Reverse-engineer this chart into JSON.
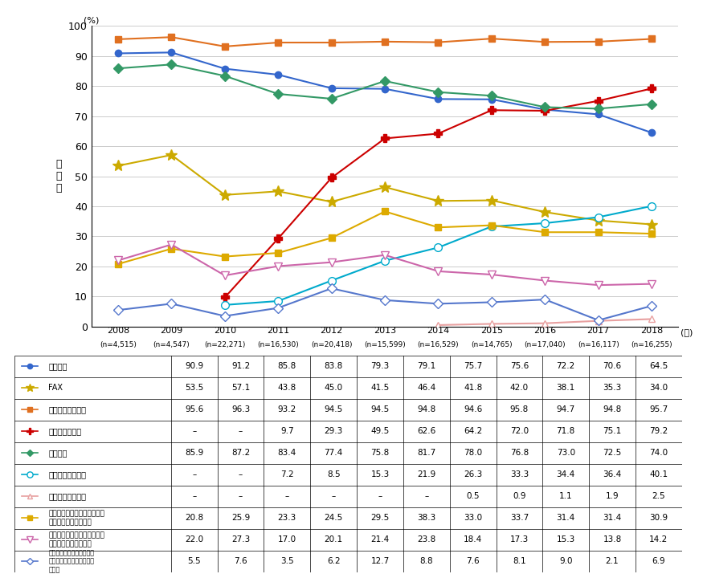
{
  "ylabel": "保\n有\n率",
  "xlabel_years": [
    2008,
    2009,
    2010,
    2011,
    2012,
    2013,
    2014,
    2015,
    2016,
    2017,
    2018
  ],
  "xlabel_n": [
    "(n=4,515)",
    "(n=4,547)",
    "(n=22,271)",
    "(n=16,530)",
    "(n=20,418)",
    "(n=15,599)",
    "(n=16,529)",
    "(n=14,765)",
    "(n=17,040)",
    "(n=16,117)",
    "(n=16,255)"
  ],
  "series": [
    {
      "name": "固定電話",
      "name_short": "固定電話",
      "values": [
        90.9,
        91.2,
        85.8,
        83.8,
        79.3,
        79.1,
        75.7,
        75.6,
        72.2,
        70.6,
        64.5
      ],
      "color": "#3366cc",
      "marker": "o",
      "marker_fill": "#3366cc",
      "linewidth": 1.5,
      "markersize": 6
    },
    {
      "name": "FAX",
      "name_short": "FAX",
      "values": [
        53.5,
        57.1,
        43.8,
        45.0,
        41.5,
        46.4,
        41.8,
        42.0,
        38.1,
        35.3,
        34.0
      ],
      "color": "#ccaa00",
      "marker": "*",
      "marker_fill": "#ccaa00",
      "linewidth": 1.5,
      "markersize": 10
    },
    {
      "name": "モバイル端末全体",
      "name_short": "モバイル端末全体",
      "values": [
        95.6,
        96.3,
        93.2,
        94.5,
        94.5,
        94.8,
        94.6,
        95.8,
        94.7,
        94.8,
        95.7
      ],
      "color": "#e07020",
      "marker": "s",
      "marker_fill": "#e07020",
      "linewidth": 1.5,
      "markersize": 6
    },
    {
      "name": "スマートフォン",
      "name_short": "スマートフォン",
      "values": [
        null,
        null,
        9.7,
        29.3,
        49.5,
        62.6,
        64.2,
        72.0,
        71.8,
        75.1,
        79.2
      ],
      "color": "#cc0000",
      "marker": "P",
      "marker_fill": "#cc0000",
      "linewidth": 1.5,
      "markersize": 7
    },
    {
      "name": "パソコン",
      "name_short": "パソコン",
      "values": [
        85.9,
        87.2,
        83.4,
        77.4,
        75.8,
        81.7,
        78.0,
        76.8,
        73.0,
        72.5,
        74.0
      ],
      "color": "#339966",
      "marker": "D",
      "marker_fill": "#339966",
      "linewidth": 1.5,
      "markersize": 6
    },
    {
      "name": "タブレット型端末",
      "name_short": "タブレット型端末",
      "values": [
        null,
        null,
        7.2,
        8.5,
        15.3,
        21.9,
        26.3,
        33.3,
        34.4,
        36.4,
        40.1
      ],
      "color": "#00aacc",
      "marker": "o",
      "marker_fill": "white",
      "linewidth": 1.5,
      "markersize": 7
    },
    {
      "name": "ウェアラブル端末",
      "name_short": "ウェアラブル端末",
      "values": [
        null,
        null,
        null,
        null,
        null,
        null,
        0.5,
        0.9,
        1.1,
        1.9,
        2.5
      ],
      "color": "#e8a0a0",
      "marker": "^",
      "marker_fill": "white",
      "linewidth": 1.5,
      "markersize": 6
    },
    {
      "name": "インターネットに接続できる家庭用テレビゲーム機",
      "name_short": "インターネットに接続できる家庭用テレビゲーム機",
      "values": [
        20.8,
        25.9,
        23.3,
        24.5,
        29.5,
        38.3,
        33.0,
        33.7,
        31.4,
        31.4,
        30.9
      ],
      "color": "#ddaa00",
      "marker": "s",
      "marker_fill": "#ddaa00",
      "linewidth": 1.5,
      "markersize": 6
    },
    {
      "name": "インターネットに接続できる携帯型音楽プレイヤー",
      "name_short": "インターネットに接続できる携帯型音楽プレイヤー",
      "values": [
        22.0,
        27.3,
        17.0,
        20.1,
        21.4,
        23.8,
        18.4,
        17.3,
        15.3,
        13.8,
        14.2
      ],
      "color": "#cc66aa",
      "marker": "v",
      "marker_fill": "white",
      "linewidth": 1.5,
      "markersize": 7
    },
    {
      "name": "その他インターネットに接続できる家電（スマート家電）等",
      "name_short": "その他インターネットに接続できる家電（スマート家電）等",
      "values": [
        5.5,
        7.6,
        3.5,
        6.2,
        12.7,
        8.8,
        7.6,
        8.1,
        9.0,
        2.1,
        6.9
      ],
      "color": "#5577cc",
      "marker": "D",
      "marker_fill": "white",
      "linewidth": 1.5,
      "markersize": 6
    }
  ],
  "ylim": [
    0,
    100
  ],
  "yticks": [
    0,
    10,
    20,
    30,
    40,
    50,
    60,
    70,
    80,
    90,
    100
  ],
  "grid_color": "#cccccc"
}
